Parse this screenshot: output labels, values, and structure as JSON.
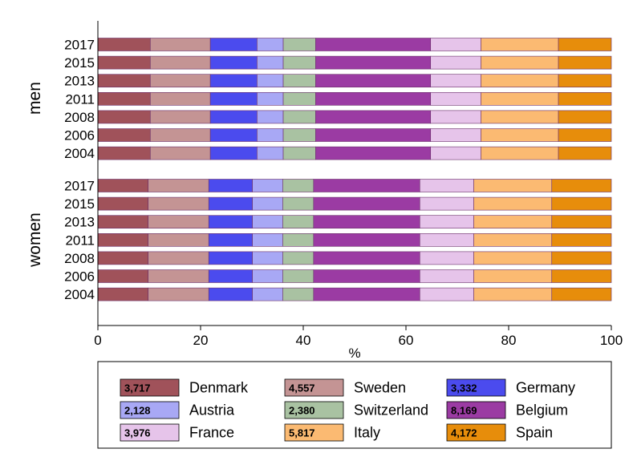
{
  "chart_data": {
    "type": "bar",
    "orientation": "horizontal",
    "stacked": true,
    "xlabel": "%",
    "xlim": [
      0,
      100
    ],
    "xticks": [
      0,
      20,
      40,
      60,
      80,
      100
    ],
    "groups": [
      {
        "name": "men",
        "categories": [
          "2017",
          "2015",
          "2013",
          "2011",
          "2008",
          "2006",
          "2004"
        ],
        "cumulative_boundaries": [
          10.2,
          21.9,
          31.0,
          36.1,
          42.4,
          64.8,
          74.6,
          89.7,
          100
        ]
      },
      {
        "name": "women",
        "categories": [
          "2017",
          "2015",
          "2013",
          "2011",
          "2008",
          "2006",
          "2004"
        ],
        "cumulative_boundaries": [
          9.8,
          21.6,
          30.1,
          36.0,
          42.0,
          62.7,
          73.2,
          88.4,
          100
        ]
      }
    ],
    "series": [
      {
        "name": "Denmark",
        "legend_value": "3,717",
        "color": "#a0525a"
      },
      {
        "name": "Sweden",
        "legend_value": "4,557",
        "color": "#c49494"
      },
      {
        "name": "Germany",
        "legend_value": "3,332",
        "color": "#4b4bee"
      },
      {
        "name": "Austria",
        "legend_value": "2,128",
        "color": "#a8a8f5"
      },
      {
        "name": "Switzerland",
        "legend_value": "2,380",
        "color": "#a9c2a2"
      },
      {
        "name": "Belgium",
        "legend_value": "8,169",
        "color": "#9b3ba3"
      },
      {
        "name": "France",
        "legend_value": "3,976",
        "color": "#e6c4ea"
      },
      {
        "name": "Italy",
        "legend_value": "5,817",
        "color": "#fbba72"
      },
      {
        "name": "Spain",
        "legend_value": "4,172",
        "color": "#e78d0b"
      }
    ],
    "legend_position": "bottom",
    "grid": false
  }
}
